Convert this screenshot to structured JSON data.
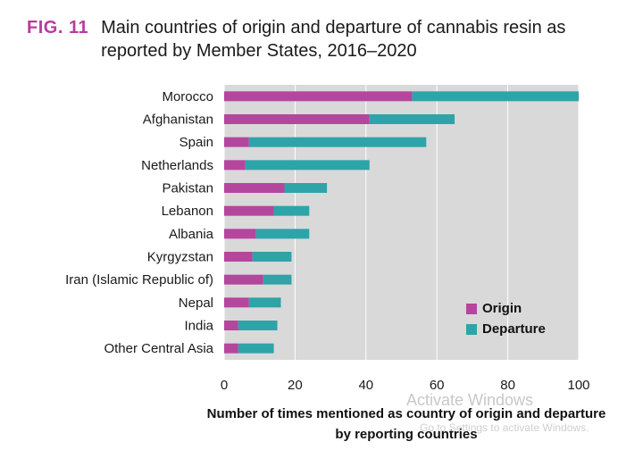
{
  "figure": {
    "number": "FIG. 11",
    "title": "Main countries of origin and departure of cannabis resin as reported by Member States, 2016–2020"
  },
  "watermark": {
    "line1": "Activate Windows",
    "line2": "Go to Settings to activate Windows."
  },
  "colors": {
    "origin": "#b5469e",
    "departure": "#2ea4a8",
    "plot_bg": "#d9d9d9",
    "grid": "#ffffff",
    "fig_number": "#b83c9c"
  },
  "chart_data": {
    "type": "bar",
    "orientation": "horizontal",
    "stacked": true,
    "categories": [
      "Morocco",
      "Afghanistan",
      "Spain",
      "Netherlands",
      "Pakistan",
      "Lebanon",
      "Albania",
      "Kyrgyzstan",
      "Iran (Islamic Republic of)",
      "Nepal",
      "India",
      "Other Central Asia"
    ],
    "series": [
      {
        "name": "Origin",
        "values": [
          53,
          41,
          7,
          6,
          17,
          14,
          9,
          8,
          11,
          7,
          4,
          4
        ]
      },
      {
        "name": "Departure",
        "values": [
          47,
          24,
          50,
          35,
          12,
          10,
          15,
          11,
          8,
          9,
          11,
          10
        ]
      }
    ],
    "xlabel": "Number of times mentioned as country of origin and departure by reporting countries",
    "xlim": [
      0,
      100
    ],
    "xticks": [
      0,
      20,
      40,
      60,
      80,
      100
    ],
    "grid": true,
    "legend_position": "bottom-right"
  }
}
